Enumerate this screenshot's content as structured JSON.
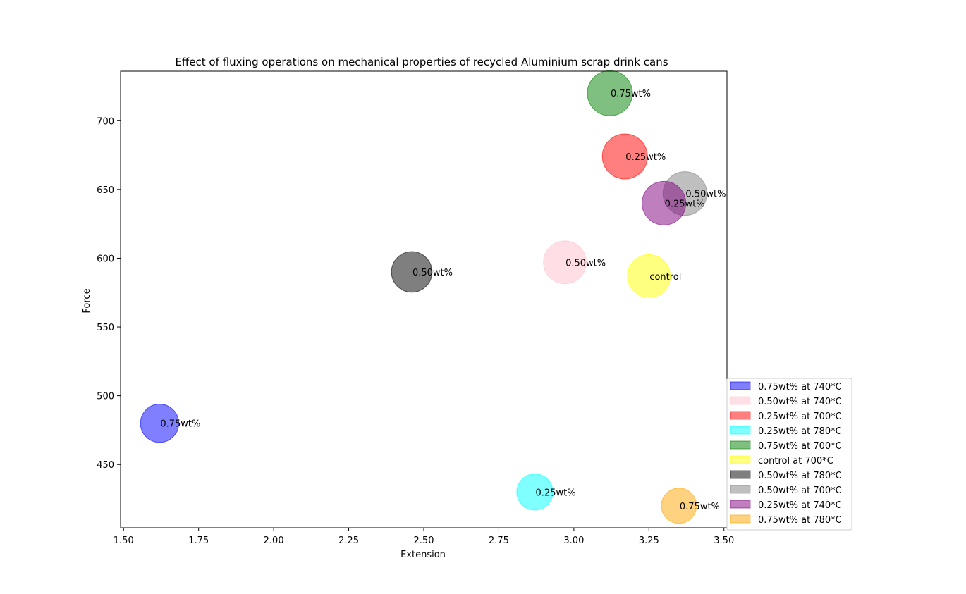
{
  "chart_data": {
    "type": "scatter",
    "title": "Effect of fluxing operations on mechanical properties of recycled Aluminium scrap drink cans",
    "xlabel": "Extension",
    "ylabel": "Force",
    "xlim": [
      1.49,
      3.51
    ],
    "ylim": [
      404,
      736
    ],
    "xticks": [
      "1.50",
      "1.75",
      "2.00",
      "2.25",
      "2.50",
      "2.75",
      "3.00",
      "3.25",
      "3.50"
    ],
    "yticks": [
      "450",
      "500",
      "550",
      "600",
      "650",
      "700"
    ],
    "legend_position": "lower-right-outside",
    "series": [
      {
        "name": "0.75wt% at 740*C",
        "x": 1.62,
        "y": 480,
        "label": "0.75wt%",
        "color": "#0000ff",
        "size": 0.85
      },
      {
        "name": "0.50wt% at 740*C",
        "x": 2.97,
        "y": 597,
        "label": "0.50wt%",
        "color": "#ffc0cb",
        "size": 0.95
      },
      {
        "name": "0.25wt% at 700*C",
        "x": 3.17,
        "y": 674,
        "label": "0.25wt%",
        "color": "#ff0000",
        "size": 1.0
      },
      {
        "name": "0.25wt% at 780*C",
        "x": 2.87,
        "y": 430,
        "label": "0.25wt%",
        "color": "#00ffff",
        "size": 0.8
      },
      {
        "name": "0.75wt% at 700*C",
        "x": 3.12,
        "y": 720,
        "label": "0.75wt%",
        "color": "#008000",
        "size": 1.0
      },
      {
        "name": "control at 700*C",
        "x": 3.25,
        "y": 587,
        "label": "control",
        "color": "#ffff00",
        "size": 0.95
      },
      {
        "name": "0.50wt% at 780*C",
        "x": 2.46,
        "y": 590,
        "label": "0.50wt%",
        "color": "#000000",
        "size": 0.9
      },
      {
        "name": "0.50wt% at 700*C",
        "x": 3.37,
        "y": 647,
        "label": "0.50wt%",
        "color": "#808080",
        "size": 0.97
      },
      {
        "name": "0.25wt% at 740*C",
        "x": 3.3,
        "y": 640,
        "label": "0.25wt%",
        "color": "#800080",
        "size": 0.97
      },
      {
        "name": "0.75wt% at 780*C",
        "x": 3.35,
        "y": 420,
        "label": "0.75wt%",
        "color": "#ffa500",
        "size": 0.78
      }
    ]
  }
}
